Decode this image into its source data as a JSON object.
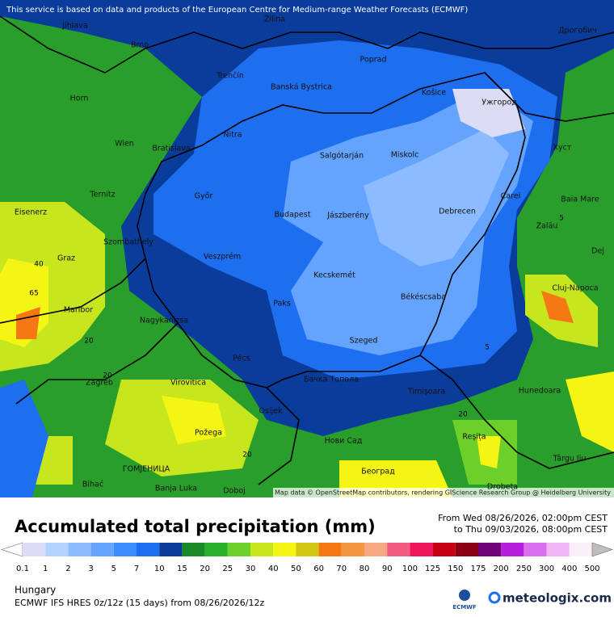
{
  "header_note": "This service is based on data and products of the European Centre for Medium-range Weather Forecasts (ECMWF)",
  "attribution": "Map data © OpenStreetMap contributors, rendering GIScience Research Group @ Heidelberg University",
  "cities": [
    "Jihlava",
    "Brno",
    "Žilina",
    "Poprad",
    "Дрогобич",
    "Trenčín",
    "Banská Bystrica",
    "Horn",
    "Košice",
    "Ужгород",
    "Nitra",
    "Wien",
    "Bratislava",
    "Salgótarján",
    "Miskolc",
    "Хуст",
    "Ternitz",
    "Győr",
    "Carei",
    "Baia Mare",
    "Eisenerz",
    "Budapest",
    "Jászberény",
    "Debrecen",
    "Szombathely",
    "Zalău",
    "Graz",
    "Veszprém",
    "Dej",
    "Kecskemét",
    "Cluj-Napoca",
    "Paks",
    "Békéscsaba",
    "Maribor",
    "Nagykanizsa",
    "Szeged",
    "Pécs",
    "Бачка Топола",
    "Zagreb",
    "Virovitica",
    "Timișoara",
    "Hunedoara",
    "Osijek",
    "Požega",
    "Reșița",
    "Нови Сад",
    "Târgu Jiu",
    "ГОМЈЕНИЦА",
    "Bihać",
    "Banja Luka",
    "Београд",
    "Doboj",
    "Drobeta"
  ],
  "contour_labels": [
    40,
    65,
    20,
    20,
    5,
    5,
    20,
    20
  ],
  "legend": {
    "title": "Accumulated total precipitation (mm)",
    "period_from": "From Wed 08/26/2026, 02:00pm CEST",
    "period_to": "to Thu 09/03/2026, 08:00pm CEST",
    "thresholds": [
      0.1,
      1,
      2,
      3,
      5,
      7,
      10,
      15,
      20,
      25,
      30,
      40,
      50,
      60,
      70,
      80,
      90,
      100,
      125,
      150,
      175,
      200,
      250,
      300,
      400,
      500
    ],
    "colors": [
      "#ffffff",
      "#dcdcf5",
      "#b4d2ff",
      "#8cbcff",
      "#64a4ff",
      "#3c8cff",
      "#1e6ef0",
      "#0a3c9c",
      "#1a8a28",
      "#2ab02a",
      "#6ccf2a",
      "#c8e61e",
      "#f5f514",
      "#d2c814",
      "#f57814",
      "#f59640",
      "#f5a882",
      "#f55a82",
      "#f0145a",
      "#c80014",
      "#8c0014",
      "#6e0078",
      "#b41edc",
      "#dc6ef0",
      "#f0b4f5",
      "#faf0fa",
      "#bebebe"
    ]
  },
  "region": "Hungary",
  "model_info": "ECMWF IFS HRES 0z/12z (15 days) from 08/26/2026/12z",
  "logos": {
    "ecmwf": "ECMWF",
    "site": "meteologix.com"
  }
}
